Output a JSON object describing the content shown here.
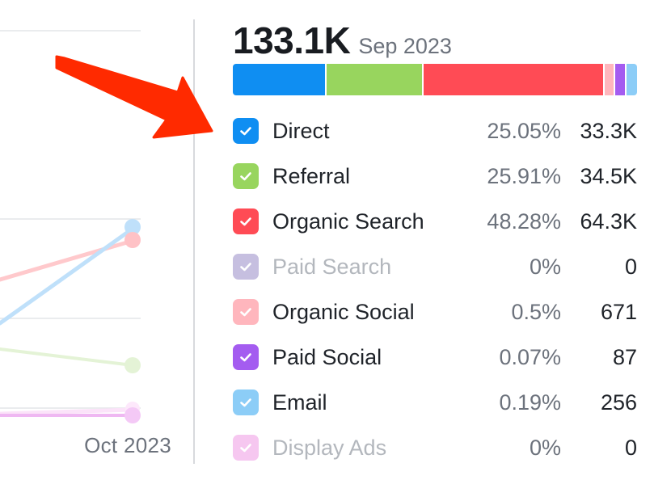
{
  "chart": {
    "x_tick": "Oct 2023"
  },
  "summary": {
    "total": "133.1K",
    "period": "Sep 2023"
  },
  "channels": [
    {
      "label": "Direct",
      "percent": "25.05%",
      "value": "33.3K",
      "color": "#0f8ef2",
      "share": 25.05,
      "muted": false
    },
    {
      "label": "Referral",
      "percent": "25.91%",
      "value": "34.5K",
      "color": "#98d55e",
      "share": 25.91,
      "muted": false
    },
    {
      "label": "Organic Search",
      "percent": "48.28%",
      "value": "64.3K",
      "color": "#ff4b55",
      "share": 48.28,
      "muted": false
    },
    {
      "label": "Paid Search",
      "percent": "0%",
      "value": "0",
      "color": "#c6bfe0",
      "share": 0,
      "muted": true
    },
    {
      "label": "Organic Social",
      "percent": "0.5%",
      "value": "671",
      "color": "#ffb6bd",
      "share": 0.5,
      "muted": false
    },
    {
      "label": "Paid Social",
      "percent": "0.07%",
      "value": "87",
      "color": "#a45cf0",
      "share": 0.07,
      "muted": false
    },
    {
      "label": "Email",
      "percent": "0.19%",
      "value": "256",
      "color": "#8ccdf7",
      "share": 0.19,
      "muted": false
    },
    {
      "label": "Display Ads",
      "percent": "0%",
      "value": "0",
      "color": "#f6c7f0",
      "share": 0,
      "muted": true
    }
  ]
}
